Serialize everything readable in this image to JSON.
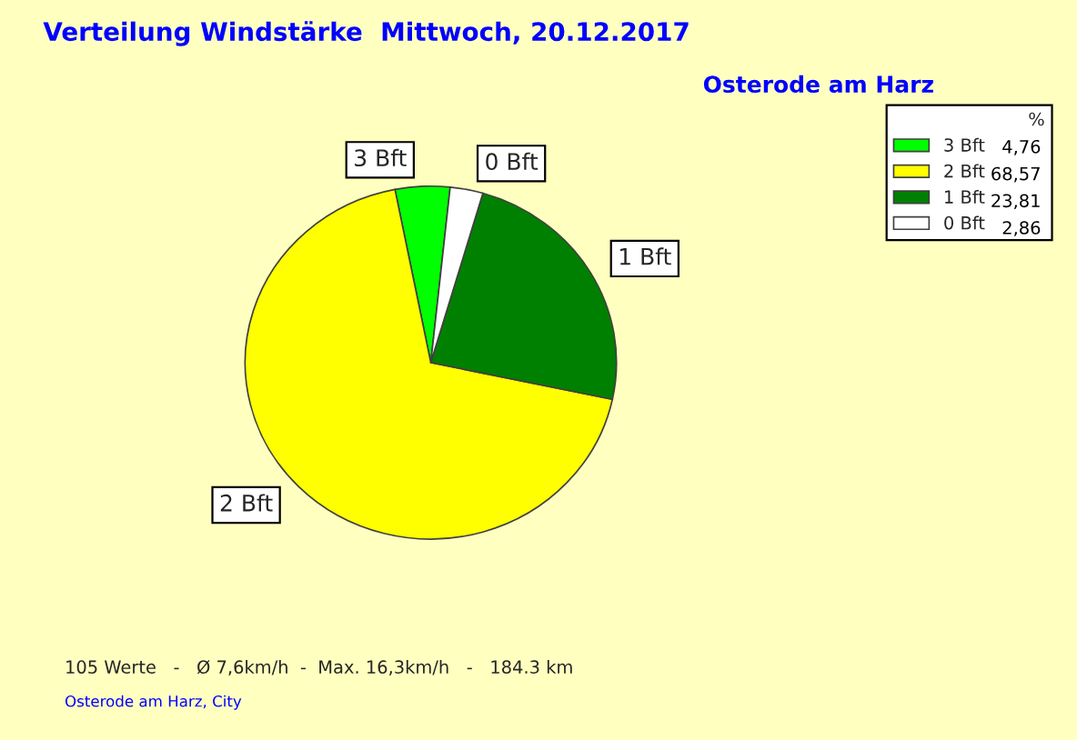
{
  "chart_data": {
    "type": "pie",
    "title": "Verteilung Windstärke  Mittwoch, 20.12.2017",
    "subtitle": "Osterode am Harz",
    "categories": [
      "3 Bft",
      "2 Bft",
      "1 Bft",
      "0 Bft"
    ],
    "values": [
      4.76,
      68.57,
      23.81,
      2.86
    ],
    "value_labels": [
      "4,76",
      "68,57",
      "23,81",
      "2,86"
    ],
    "colors": [
      "#00ff00",
      "#ffff00",
      "#008000",
      "#ffffff"
    ],
    "legend": "top right",
    "legend_title": "%",
    "annotations": [
      "105 Werte   -   Ø 7,6km/h  -  Max. 16,3km/h   -   184.3 km",
      "Osterode am Harz, City"
    ]
  }
}
